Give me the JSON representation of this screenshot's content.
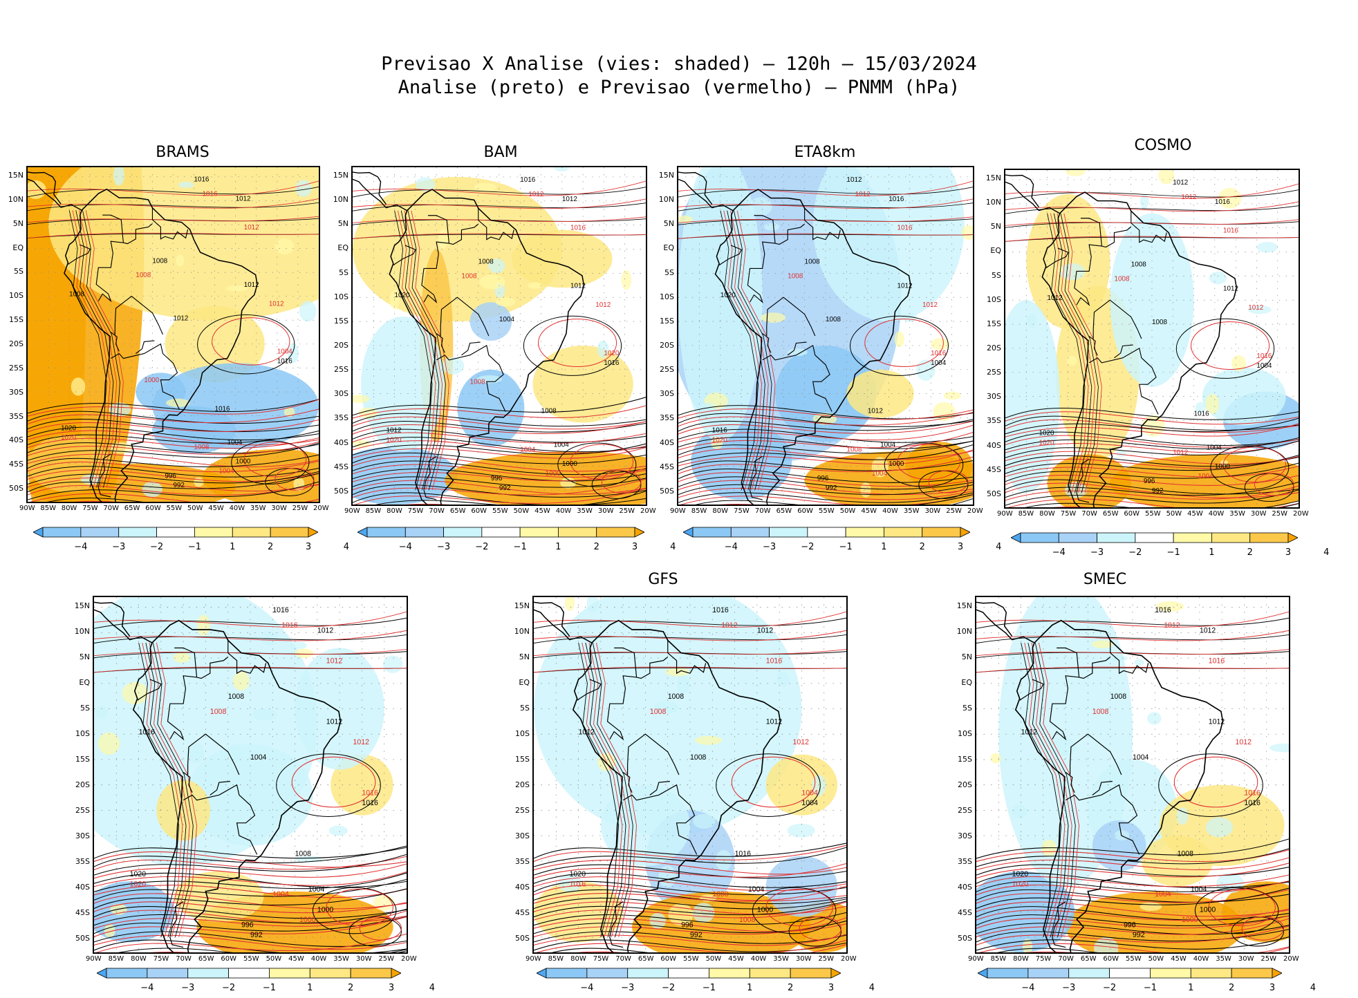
{
  "figure": {
    "title_line1": "Previsao X Analise (vies: shaded) – 120h – 15/03/2024",
    "title_line2": "Analise (preto) e Previsao (vermelho) – PNMM (hPa)"
  },
  "axes": {
    "lat_labels": [
      "15N",
      "10N",
      "5N",
      "EQ",
      "5S",
      "10S",
      "15S",
      "20S",
      "25S",
      "30S",
      "35S",
      "40S",
      "45S",
      "50S"
    ],
    "lon_labels": [
      "90W",
      "85W",
      "80W",
      "75W",
      "70W",
      "65W",
      "60W",
      "55W",
      "50W",
      "45W",
      "40W",
      "35W",
      "30W",
      "25W",
      "20W"
    ]
  },
  "colorbar": {
    "labels": [
      "−4",
      "−3",
      "−2",
      "−1",
      "1",
      "2",
      "3",
      "4"
    ],
    "colors": [
      "#4da6f0",
      "#8cc8f5",
      "#a9d2f7",
      "#ccf5fb",
      "#ffffff",
      "#fff9a8",
      "#fde884",
      "#fbc84a",
      "#f7a400"
    ]
  },
  "colors": {
    "analysis_contour": "#000000",
    "forecast_contour": "#e03030",
    "coastline": "#000000"
  },
  "panels": [
    {
      "title": "BRAMS",
      "labels_black": [
        "1016",
        "1012",
        "1008",
        "1012",
        "1016",
        "1012",
        "1016",
        "1020",
        "1008",
        "1004",
        "1000",
        "996",
        "992"
      ],
      "labels_red": [
        "1016",
        "1012",
        "1008",
        "1012",
        "1020",
        "1004",
        "1008",
        "1004",
        "1000"
      ]
    },
    {
      "title": "BAM",
      "labels_black": [
        "1016",
        "1012",
        "1008",
        "1012",
        "1016",
        "1004",
        "1008",
        "1012",
        "1020",
        "1004",
        "1000",
        "996",
        "992"
      ],
      "labels_red": [
        "1012",
        "1016",
        "1008",
        "1012",
        "1020",
        "1020",
        "1004",
        "1000",
        "1008"
      ]
    },
    {
      "title": "ETA8km",
      "labels_black": [
        "1012",
        "1016",
        "1008",
        "1012",
        "1004",
        "1008",
        "1012",
        "1016",
        "1020",
        "1004",
        "1000",
        "996",
        "992"
      ],
      "labels_red": [
        "1012",
        "1016",
        "1008",
        "1012",
        "1020",
        "1016",
        "1008",
        "1004"
      ]
    },
    {
      "title": "COSMO",
      "labels_black": [
        "1012",
        "1016",
        "1008",
        "1012",
        "1004",
        "1008",
        "1016",
        "1020",
        "1012",
        "1004",
        "1000",
        "996",
        "992"
      ],
      "labels_red": [
        "1012",
        "1016",
        "1008",
        "1012",
        "1020",
        "1016",
        "1012",
        "1004"
      ]
    },
    {
      "title": "",
      "labels_black": [
        "1016",
        "1012",
        "1008",
        "1012",
        "1016",
        "1004",
        "1008",
        "1020",
        "1016",
        "1004",
        "1000",
        "996",
        "992"
      ],
      "labels_red": [
        "1016",
        "1012",
        "1008",
        "1012",
        "1020",
        "1016",
        "1004",
        "1000"
      ]
    },
    {
      "title": "GFS",
      "labels_black": [
        "1016",
        "1012",
        "1008",
        "1012",
        "1004",
        "1008",
        "1016",
        "1020",
        "1012",
        "1004",
        "1000",
        "996",
        "992"
      ],
      "labels_red": [
        "1012",
        "1016",
        "1008",
        "1012",
        "1016",
        "1004",
        "1000",
        "1008"
      ]
    },
    {
      "title": "SMEC",
      "labels_black": [
        "1016",
        "1012",
        "1008",
        "1012",
        "1016",
        "1004",
        "1008",
        "1020",
        "1012",
        "1004",
        "1000",
        "996",
        "992"
      ],
      "labels_red": [
        "1012",
        "1016",
        "1008",
        "1012",
        "1020",
        "1016",
        "1004",
        "1000"
      ]
    }
  ]
}
